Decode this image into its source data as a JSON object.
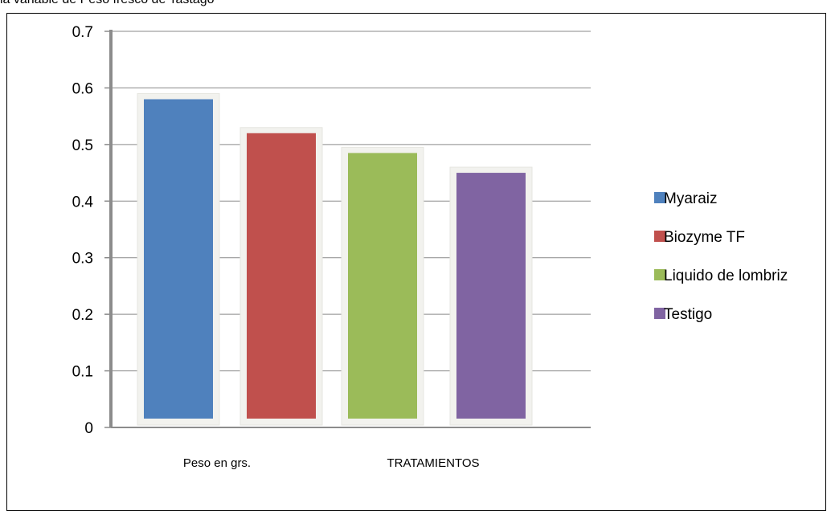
{
  "caption": "la variable de Peso fresco de Tastago",
  "chart_data": {
    "type": "bar",
    "title": "",
    "xlabel": "",
    "ylabel": "",
    "ylim": [
      0,
      0.7
    ],
    "yticks": [
      0,
      0.1,
      0.2,
      0.3,
      0.4,
      0.5,
      0.6,
      0.7
    ],
    "grid": true,
    "legend_position": "right",
    "category_labels": [
      "Peso en grs.",
      "TRATAMIENTOS"
    ],
    "series": [
      {
        "name": "Myaraiz",
        "value": 0.58,
        "color": "#4F81BD"
      },
      {
        "name": "Biozyme TF",
        "value": 0.52,
        "color": "#C0504D"
      },
      {
        "name": "Liquido de lombriz",
        "value": 0.485,
        "color": "#9BBB59"
      },
      {
        "name": "Testigo",
        "value": 0.45,
        "color": "#8064A2"
      }
    ]
  }
}
